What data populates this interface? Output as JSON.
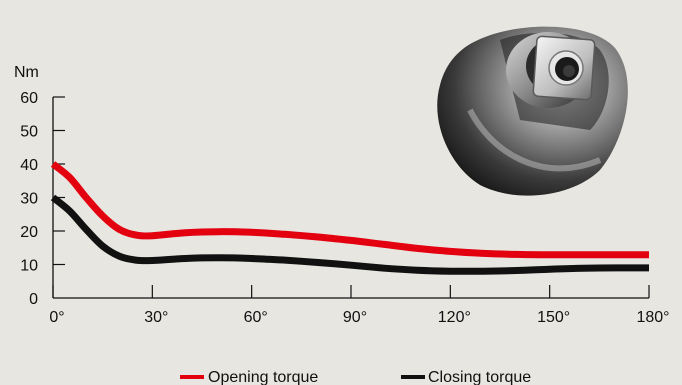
{
  "chart_data": {
    "type": "line",
    "title": "",
    "xlabel": "",
    "ylabel": "Nm",
    "x": [
      0,
      5,
      10,
      15,
      20,
      25,
      30,
      40,
      50,
      60,
      70,
      80,
      90,
      100,
      110,
      120,
      130,
      140,
      150,
      160,
      170,
      180
    ],
    "xticks": [
      "0°",
      "30°",
      "60°",
      "90°",
      "120°",
      "150°",
      "180°"
    ],
    "xtick_values": [
      0,
      30,
      60,
      90,
      120,
      150,
      180
    ],
    "xlim": [
      0,
      180
    ],
    "yticks": [
      "0",
      "10",
      "20",
      "30",
      "40",
      "50",
      "60"
    ],
    "ytick_values": [
      0,
      10,
      20,
      30,
      40,
      50,
      60
    ],
    "ylim": [
      0,
      60
    ],
    "grid": false,
    "legend": "bottom-center",
    "series": [
      {
        "name": "Opening torque",
        "color": "#e3000f",
        "values": [
          40,
          36,
          30,
          24.5,
          20.5,
          18.8,
          18.6,
          19.5,
          19.8,
          19.6,
          19,
          18.2,
          17.2,
          16,
          14.8,
          13.9,
          13.3,
          13,
          12.9,
          12.9,
          12.9,
          12.9
        ]
      },
      {
        "name": "Closing torque",
        "color": "#111111",
        "values": [
          30,
          26,
          20.5,
          15.5,
          12.5,
          11.3,
          11.2,
          11.8,
          12,
          11.8,
          11.3,
          10.6,
          9.8,
          8.9,
          8.3,
          8,
          8,
          8.2,
          8.6,
          8.9,
          9,
          9
        ]
      }
    ]
  },
  "legend": {
    "opening_label": "Opening torque",
    "closing_label": "Closing torque"
  },
  "product_image": {
    "icon": "valve-shaft-coupling-photo"
  }
}
